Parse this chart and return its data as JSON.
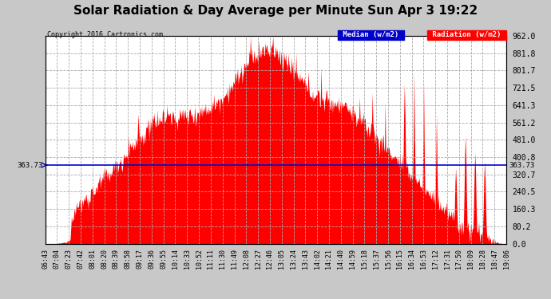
{
  "title": "Solar Radiation & Day Average per Minute Sun Apr 3 19:22",
  "copyright": "Copyright 2016 Cartronics.com",
  "median_value": 363.73,
  "y_max": 962.0,
  "y_min": 0.0,
  "y_ticks": [
    0.0,
    80.2,
    160.3,
    240.5,
    320.7,
    400.8,
    481.0,
    561.2,
    641.3,
    721.5,
    801.7,
    881.8,
    962.0
  ],
  "background_color": "#c8c8c8",
  "plot_bg_color": "#ffffff",
  "bar_color": "#ff0000",
  "median_color": "#0000cc",
  "title_fontsize": 11,
  "x_labels": [
    "06:43",
    "07:04",
    "07:23",
    "07:42",
    "08:01",
    "08:20",
    "08:39",
    "08:58",
    "09:17",
    "09:36",
    "09:55",
    "10:14",
    "10:33",
    "10:52",
    "11:11",
    "11:30",
    "11:49",
    "12:08",
    "12:27",
    "12:46",
    "13:05",
    "13:24",
    "13:43",
    "14:02",
    "14:21",
    "14:40",
    "14:59",
    "15:18",
    "15:37",
    "15:56",
    "16:15",
    "16:34",
    "16:53",
    "17:12",
    "17:31",
    "17:50",
    "18:09",
    "18:28",
    "18:47",
    "19:06"
  ],
  "num_points": 720
}
